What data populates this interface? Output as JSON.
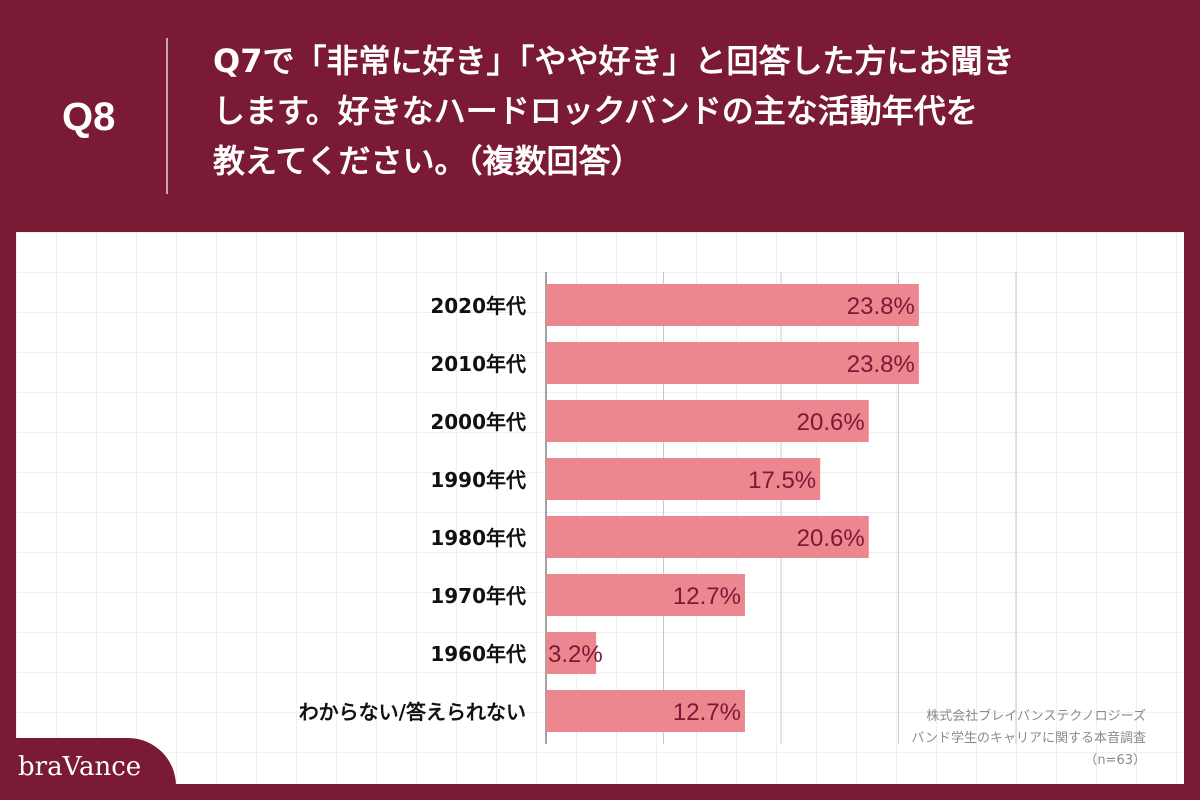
{
  "header": {
    "qnum": "Q8",
    "question_lines": [
      "Q7で「非常に好き」「やや好き」と回答した方にお聞き",
      "します。好きなハードロックバンドの主な活動年代を",
      "教えてください。（複数回答）"
    ]
  },
  "chart_data": {
    "type": "bar",
    "orientation": "horizontal",
    "categories": [
      "2020年代",
      "2010年代",
      "2000年代",
      "1990年代",
      "1980年代",
      "1970年代",
      "1960年代",
      "わからない/答えられない"
    ],
    "values": [
      23.8,
      23.8,
      20.6,
      17.5,
      20.6,
      12.7,
      3.2,
      12.7
    ],
    "value_labels": [
      "23.8%",
      "23.8%",
      "20.6%",
      "17.5%",
      "20.6%",
      "12.7%",
      "3.2%",
      "12.7%"
    ],
    "xlim": [
      0,
      30
    ],
    "grid": true,
    "bar_color": "#ec868f",
    "label_color": "#7b1a35"
  },
  "footnote": {
    "line1": "株式会社ブレイバンステクノロジーズ",
    "line2": "バンド学生のキャリアに関する本音調査",
    "line3": "（n=63）"
  },
  "logo": {
    "text": "braVance"
  },
  "colors": {
    "background": "#7b1a35",
    "panel": "#ffffff",
    "bar": "#ec868f"
  }
}
